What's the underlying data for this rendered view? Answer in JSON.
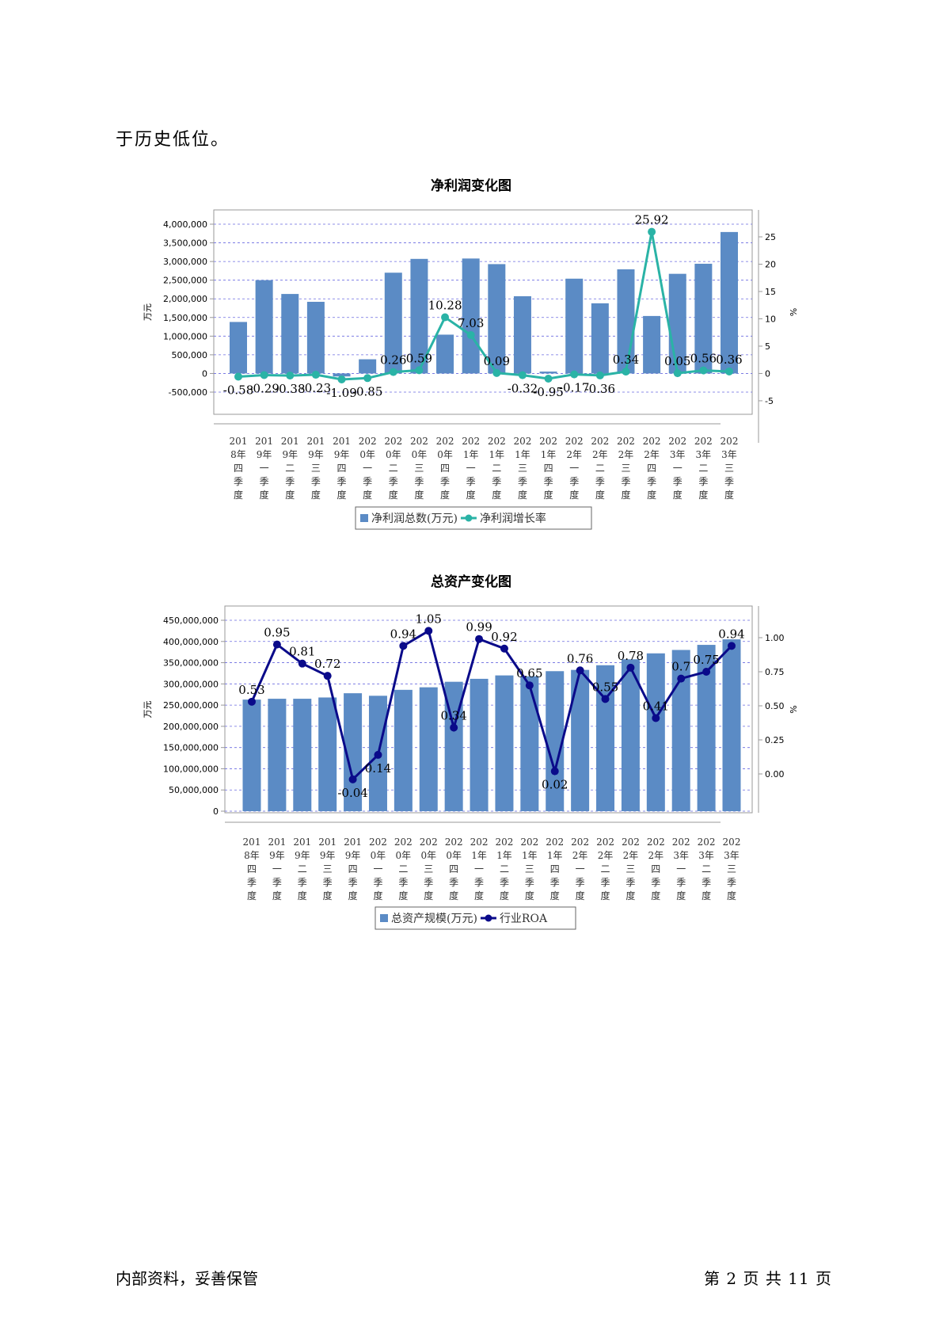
{
  "intro_text": "于历史低位。",
  "footer": {
    "left": "内部资料，妥善保管",
    "right": "第 2 页   共 11 页"
  },
  "colors": {
    "bar": "#5b8bc5",
    "line1": "#2ab3a6",
    "line2": "#0a0a8a",
    "grid": "#6a6ae0"
  },
  "chart_data": [
    {
      "type": "bar",
      "title": "净利润变化图",
      "ylabel": "万元",
      "y2label": "%",
      "ylim": [
        -500000,
        4000000
      ],
      "y2lim": [
        -5,
        25
      ],
      "yticks": [
        "-500,000",
        "0",
        "500,000",
        "1,000,000",
        "1,500,000",
        "2,000,000",
        "2,500,000",
        "3,000,000",
        "3,500,000",
        "4,000,000"
      ],
      "y2ticks": [
        "-5",
        "0",
        "5",
        "10",
        "15",
        "20",
        "25"
      ],
      "grid": true,
      "legend_position": "bottom",
      "categories": [
        [
          "201",
          "8年",
          "四",
          "季",
          "度"
        ],
        [
          "201",
          "9年",
          "一",
          "季",
          "度"
        ],
        [
          "201",
          "9年",
          "二",
          "季",
          "度"
        ],
        [
          "201",
          "9年",
          "三",
          "季",
          "度"
        ],
        [
          "201",
          "9年",
          "四",
          "季",
          "度"
        ],
        [
          "202",
          "0年",
          "一",
          "季",
          "度"
        ],
        [
          "202",
          "0年",
          "二",
          "季",
          "度"
        ],
        [
          "202",
          "0年",
          "三",
          "季",
          "度"
        ],
        [
          "202",
          "0年",
          "四",
          "季",
          "度"
        ],
        [
          "202",
          "1年",
          "一",
          "季",
          "度"
        ],
        [
          "202",
          "1年",
          "二",
          "季",
          "度"
        ],
        [
          "202",
          "1年",
          "三",
          "季",
          "度"
        ],
        [
          "202",
          "1年",
          "四",
          "季",
          "度"
        ],
        [
          "202",
          "2年",
          "一",
          "季",
          "度"
        ],
        [
          "202",
          "2年",
          "二",
          "季",
          "度"
        ],
        [
          "202",
          "2年",
          "三",
          "季",
          "度"
        ],
        [
          "202",
          "2年",
          "四",
          "季",
          "度"
        ],
        [
          "202",
          "3年",
          "一",
          "季",
          "度"
        ],
        [
          "202",
          "3年",
          "二",
          "季",
          "度"
        ],
        [
          "202",
          "3年",
          "三",
          "季",
          "度"
        ]
      ],
      "series": [
        {
          "name": "净利润总数(万元)",
          "kind": "bar",
          "axis": "left",
          "values": [
            1380000,
            2500000,
            2130000,
            1920000,
            -80000,
            380000,
            2700000,
            3070000,
            1040000,
            3080000,
            2930000,
            2070000,
            50000,
            2540000,
            1880000,
            2790000,
            1540000,
            2670000,
            2940000,
            3790000
          ]
        },
        {
          "name": "净利润增长率",
          "kind": "line",
          "axis": "right",
          "values": [
            -0.58,
            -0.29,
            -0.38,
            -0.23,
            -1.09,
            -0.85,
            0.26,
            0.59,
            10.28,
            7.03,
            0.09,
            -0.32,
            -0.95,
            -0.17,
            -0.36,
            0.34,
            25.92,
            0.05,
            0.56,
            0.36
          ],
          "labels": [
            "-0.58",
            "-0.29",
            "-0.38",
            "-0.23",
            "-1.09",
            "-0.85",
            "0.26",
            "0.59",
            "10.28",
            "7.03",
            "0.09",
            "-0.32",
            "-0.95",
            "-0.17",
            "-0.36",
            "0.34",
            "25.92",
            "0.05",
            "0.56",
            "0.36"
          ]
        }
      ]
    },
    {
      "type": "bar",
      "title": "总资产变化图",
      "ylabel": "万元",
      "y2label": "%",
      "ylim": [
        0,
        450000000
      ],
      "y2lim": [
        -0.2,
        1.2
      ],
      "yticks": [
        "0",
        "50,000,000",
        "100,000,000",
        "150,000,000",
        "200,000,000",
        "250,000,000",
        "300,000,000",
        "350,000,000",
        "400,000,000",
        "450,000,000"
      ],
      "y2ticks": [
        "0.00",
        "0.25",
        "0.50",
        "0.75",
        "1.00"
      ],
      "grid": true,
      "legend_position": "bottom",
      "categories": [
        [
          "201",
          "8年",
          "四",
          "季",
          "度"
        ],
        [
          "201",
          "9年",
          "一",
          "季",
          "度"
        ],
        [
          "201",
          "9年",
          "二",
          "季",
          "度"
        ],
        [
          "201",
          "9年",
          "三",
          "季",
          "度"
        ],
        [
          "201",
          "9年",
          "四",
          "季",
          "度"
        ],
        [
          "202",
          "0年",
          "一",
          "季",
          "度"
        ],
        [
          "202",
          "0年",
          "二",
          "季",
          "度"
        ],
        [
          "202",
          "0年",
          "三",
          "季",
          "度"
        ],
        [
          "202",
          "0年",
          "四",
          "季",
          "度"
        ],
        [
          "202",
          "1年",
          "一",
          "季",
          "度"
        ],
        [
          "202",
          "1年",
          "二",
          "季",
          "度"
        ],
        [
          "202",
          "1年",
          "三",
          "季",
          "度"
        ],
        [
          "202",
          "1年",
          "四",
          "季",
          "度"
        ],
        [
          "202",
          "2年",
          "一",
          "季",
          "度"
        ],
        [
          "202",
          "2年",
          "二",
          "季",
          "度"
        ],
        [
          "202",
          "2年",
          "三",
          "季",
          "度"
        ],
        [
          "202",
          "2年",
          "四",
          "季",
          "度"
        ],
        [
          "202",
          "3年",
          "一",
          "季",
          "度"
        ],
        [
          "202",
          "3年",
          "二",
          "季",
          "度"
        ],
        [
          "202",
          "3年",
          "三",
          "季",
          "度"
        ]
      ],
      "series": [
        {
          "name": "总资产规模(万元)",
          "kind": "bar",
          "axis": "left",
          "values": [
            263000000,
            265000000,
            265000000,
            268000000,
            278000000,
            272000000,
            286000000,
            292000000,
            305000000,
            312000000,
            320000000,
            318000000,
            330000000,
            333000000,
            344000000,
            358000000,
            372000000,
            380000000,
            392000000,
            405000000
          ]
        },
        {
          "name": "行业ROA",
          "kind": "line",
          "axis": "right",
          "values": [
            0.53,
            0.95,
            0.81,
            0.72,
            -0.04,
            0.14,
            0.94,
            1.05,
            0.34,
            0.99,
            0.92,
            0.65,
            0.02,
            0.76,
            0.55,
            0.78,
            0.41,
            0.7,
            0.75,
            0.94
          ],
          "labels": [
            "0.53",
            "0.95",
            "0.81",
            "0.72",
            "-0.04",
            "0.14",
            "0.94",
            "1.05",
            "0.34",
            "0.99",
            "0.92",
            "0.65",
            "0.02",
            "0.76",
            "0.55",
            "0.78",
            "0.41",
            "0.7",
            "0.75",
            "0.94"
          ]
        }
      ]
    }
  ]
}
